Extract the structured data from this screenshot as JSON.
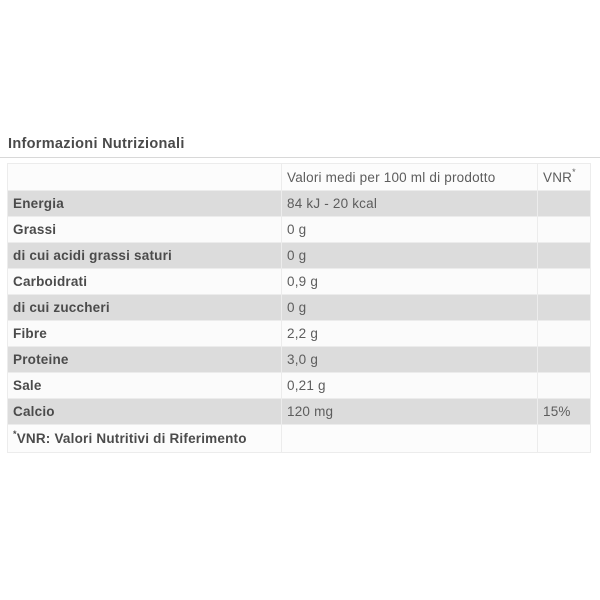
{
  "title": "Informazioni Nutrizionali",
  "table": {
    "header": {
      "label": "",
      "value": "Valori medi per 100 ml di prodotto",
      "vnr": "VNR",
      "vnr_asterisk": "*"
    },
    "rows": [
      {
        "label": "Energia",
        "value": "84 kJ - 20 kcal",
        "vnr": ""
      },
      {
        "label": "Grassi",
        "value": "0 g",
        "vnr": ""
      },
      {
        "label": "di cui acidi grassi saturi",
        "value": "0 g",
        "vnr": ""
      },
      {
        "label": "Carboidrati",
        "value": "0,9 g",
        "vnr": ""
      },
      {
        "label": "di cui zuccheri",
        "value": "0 g",
        "vnr": ""
      },
      {
        "label": "Fibre",
        "value": "2,2 g",
        "vnr": ""
      },
      {
        "label": "Proteine",
        "value": "3,0 g",
        "vnr": ""
      },
      {
        "label": "Sale",
        "value": "0,21 g",
        "vnr": ""
      },
      {
        "label": "Calcio",
        "value": "120 mg",
        "vnr": "15%"
      }
    ],
    "footer": {
      "asterisk": "*",
      "note": "VNR: Valori Nutritivi di Riferimento"
    }
  },
  "colors": {
    "row_shaded": "#dcdcdc",
    "row_plain": "#fbfbfb",
    "border": "#ececec",
    "divider": "#d8d8d8",
    "text_label": "#4b4b4b",
    "text_value": "#5d5d5d"
  }
}
